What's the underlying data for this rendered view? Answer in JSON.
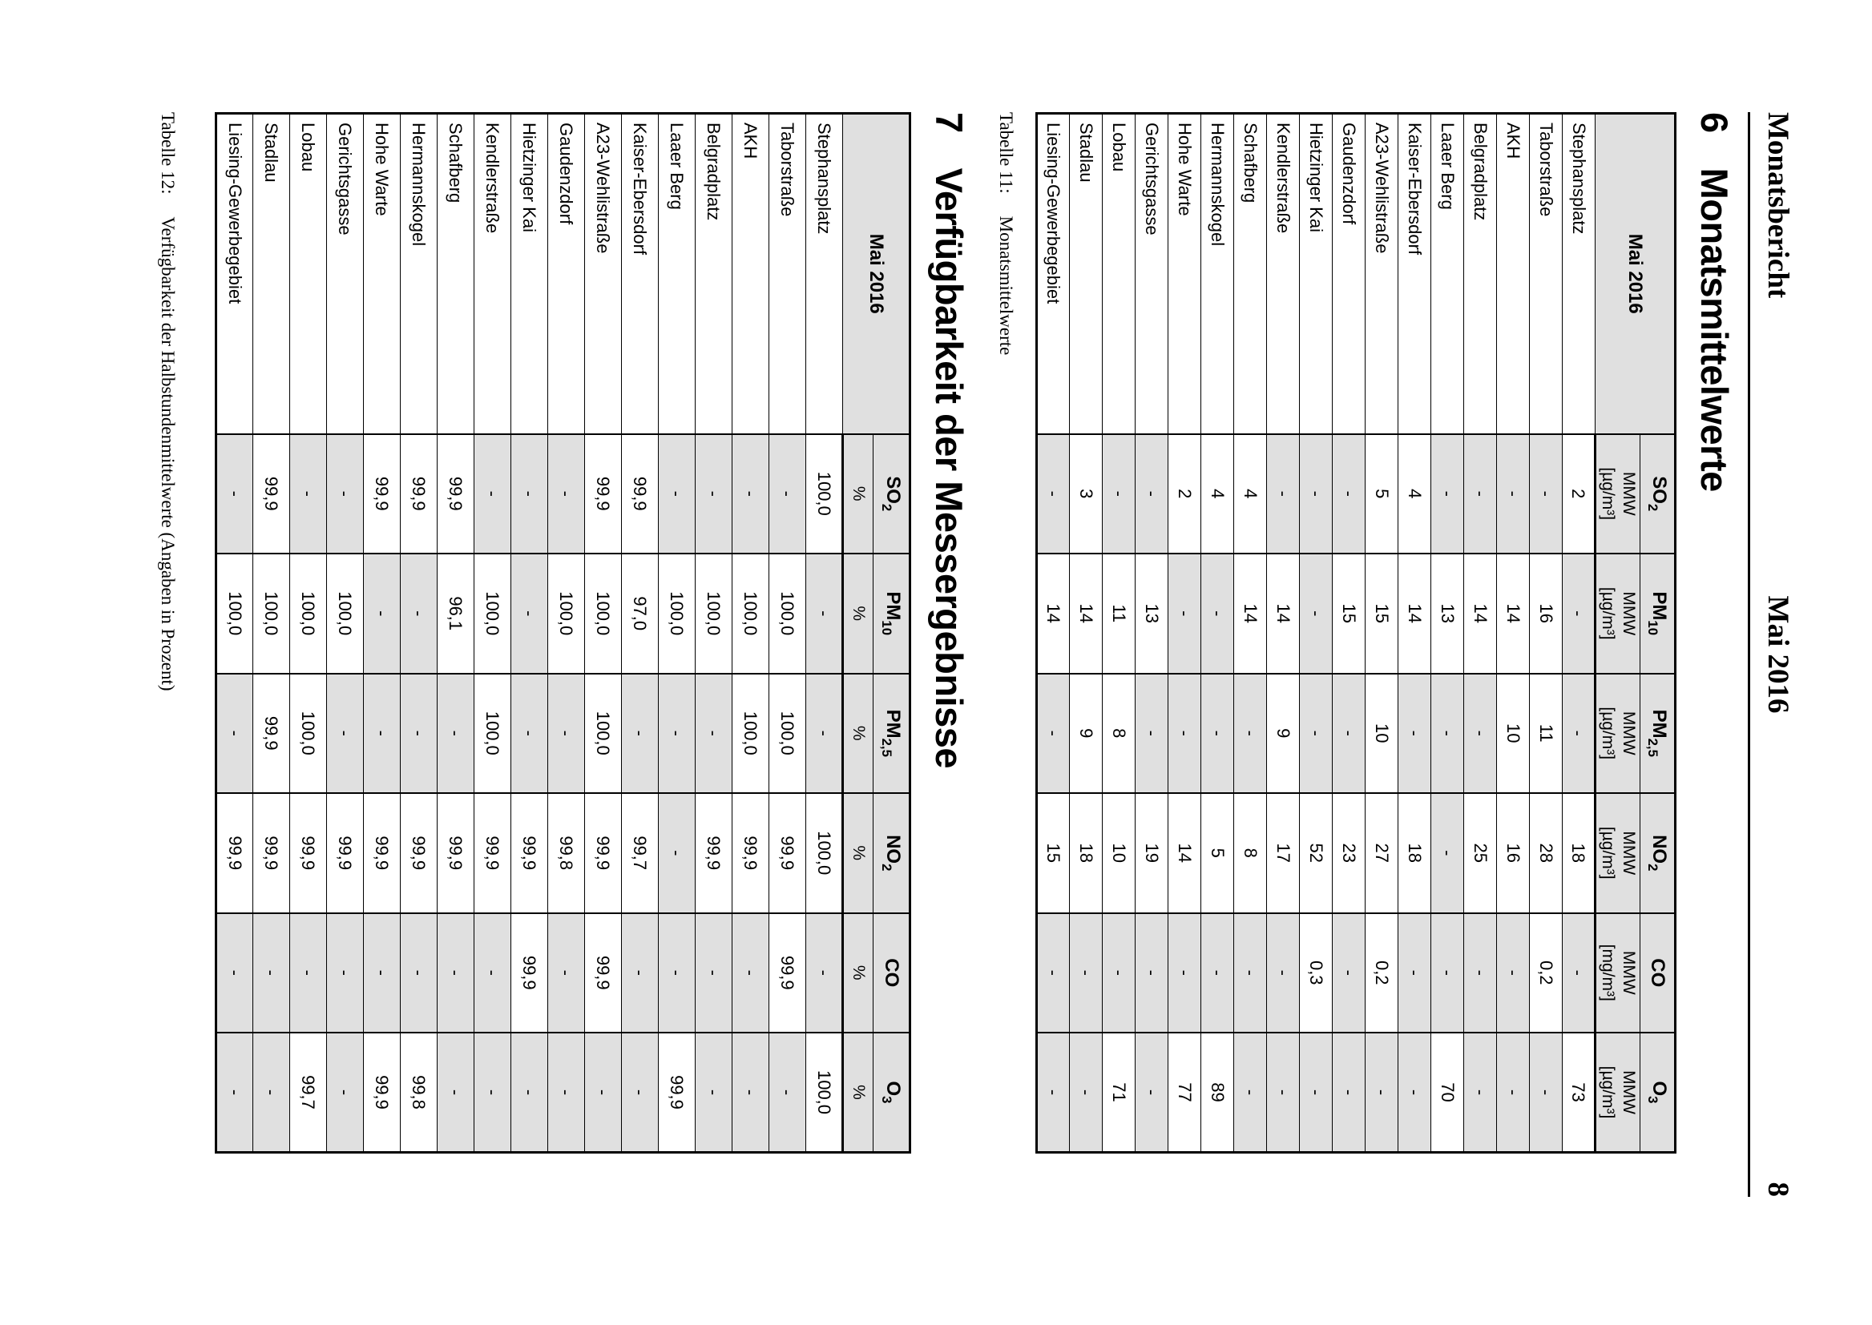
{
  "page": {
    "header": {
      "left": "Monatsbericht",
      "center": "Mai 2016",
      "page_number": "8"
    },
    "section6": {
      "number": "6",
      "title": "Monatsmittelwerte"
    },
    "section7": {
      "number": "7",
      "title": "Verfügbarkeit der Messergebnisse"
    },
    "table11_caption": {
      "label": "Tabelle 11:",
      "text": "Monatsmittelwerte"
    },
    "table12_caption": {
      "label": "Tabelle 12:",
      "text": "Verfügbarkeit der Halbstundenmittelwerte (Angaben in Prozent)"
    }
  },
  "colors": {
    "na_cell": "#e0e0e0",
    "header_bg": "#e0e0e0",
    "border": "#000000"
  },
  "tables": {
    "monatsmittelwerte": {
      "corner": "Mai 2016",
      "columns": [
        {
          "symbol": "SO|2",
          "unit": "MMW",
          "unit2": "[µg/m³]"
        },
        {
          "symbol": "PM|10",
          "unit": "MMW",
          "unit2": "[µg/m³]"
        },
        {
          "symbol": "PM|2,5",
          "unit": "MMW",
          "unit2": "[µg/m³]"
        },
        {
          "symbol": "NO|2",
          "unit": "MMW",
          "unit2": "[µg/m³]"
        },
        {
          "symbol": "CO",
          "unit": "MMW",
          "unit2": "[mg/m³]"
        },
        {
          "symbol": "O|3",
          "unit": "MMW",
          "unit2": "[µg/m³]"
        }
      ],
      "rows": [
        {
          "station": "Stephansplatz",
          "values": [
            "2",
            "-",
            "-",
            "18",
            "-",
            "73"
          ]
        },
        {
          "station": "Taborstraße",
          "values": [
            "-",
            "16",
            "11",
            "28",
            "0,2",
            "-"
          ]
        },
        {
          "station": "AKH",
          "values": [
            "-",
            "14",
            "10",
            "16",
            "-",
            "-"
          ]
        },
        {
          "station": "Belgradplatz",
          "values": [
            "-",
            "14",
            "-",
            "25",
            "-",
            "-"
          ]
        },
        {
          "station": "Laaer Berg",
          "values": [
            "-",
            "13",
            "-",
            "-",
            "-",
            "70"
          ]
        },
        {
          "station": "Kaiser-Ebersdorf",
          "values": [
            "4",
            "14",
            "-",
            "18",
            "-",
            "-"
          ]
        },
        {
          "station": "A23-Wehlistraße",
          "values": [
            "5",
            "15",
            "10",
            "27",
            "0,2",
            "-"
          ]
        },
        {
          "station": "Gaudenzdorf",
          "values": [
            "-",
            "15",
            "-",
            "23",
            "-",
            "-"
          ]
        },
        {
          "station": "Hietzinger Kai",
          "values": [
            "-",
            "-",
            "-",
            "52",
            "0,3",
            "-"
          ]
        },
        {
          "station": "Kendlerstraße",
          "values": [
            "-",
            "14",
            "9",
            "17",
            "-",
            "-"
          ]
        },
        {
          "station": "Schafberg",
          "values": [
            "4",
            "14",
            "-",
            "8",
            "-",
            "-"
          ]
        },
        {
          "station": "Hermannskogel",
          "values": [
            "4",
            "-",
            "-",
            "5",
            "-",
            "89"
          ]
        },
        {
          "station": "Hohe Warte",
          "values": [
            "2",
            "-",
            "-",
            "14",
            "-",
            "77"
          ]
        },
        {
          "station": "Gerichtsgasse",
          "values": [
            "-",
            "13",
            "-",
            "19",
            "-",
            "-"
          ]
        },
        {
          "station": "Lobau",
          "values": [
            "-",
            "11",
            "8",
            "10",
            "-",
            "71"
          ]
        },
        {
          "station": "Stadlau",
          "values": [
            "3",
            "14",
            "9",
            "18",
            "-",
            "-"
          ]
        },
        {
          "station": "Liesing-Gewerbegebiet",
          "values": [
            "-",
            "14",
            "-",
            "15",
            "-",
            "-"
          ]
        }
      ]
    },
    "verfuegbarkeit": {
      "corner": "Mai 2016",
      "columns": [
        {
          "symbol": "SO|2",
          "unit": "%"
        },
        {
          "symbol": "PM|10",
          "unit": "%"
        },
        {
          "symbol": "PM|2,5",
          "unit": "%"
        },
        {
          "symbol": "NO|2",
          "unit": "%"
        },
        {
          "symbol": "CO",
          "unit": "%"
        },
        {
          "symbol": "O|3",
          "unit": "%"
        }
      ],
      "rows": [
        {
          "station": "Stephansplatz",
          "values": [
            "100,0",
            "-",
            "-",
            "100,0",
            "-",
            "100,0"
          ]
        },
        {
          "station": "Taborstraße",
          "values": [
            "-",
            "100,0",
            "100,0",
            "99,9",
            "99,9",
            "-"
          ]
        },
        {
          "station": "AKH",
          "values": [
            "-",
            "100,0",
            "100,0",
            "99,9",
            "-",
            "-"
          ]
        },
        {
          "station": "Belgradplatz",
          "values": [
            "-",
            "100,0",
            "-",
            "99,9",
            "-",
            "-"
          ]
        },
        {
          "station": "Laaer Berg",
          "values": [
            "-",
            "100,0",
            "-",
            "-",
            "-",
            "99,9"
          ]
        },
        {
          "station": "Kaiser-Ebersdorf",
          "values": [
            "99,9",
            "97,0",
            "-",
            "99,7",
            "-",
            "-"
          ]
        },
        {
          "station": "A23-Wehlistraße",
          "values": [
            "99,9",
            "100,0",
            "100,0",
            "99,9",
            "99,9",
            "-"
          ]
        },
        {
          "station": "Gaudenzdorf",
          "values": [
            "-",
            "100,0",
            "-",
            "99,8",
            "-",
            "-"
          ]
        },
        {
          "station": "Hietzinger Kai",
          "values": [
            "-",
            "-",
            "-",
            "99,9",
            "99,9",
            "-"
          ]
        },
        {
          "station": "Kendlerstraße",
          "values": [
            "-",
            "100,0",
            "100,0",
            "99,9",
            "-",
            "-"
          ]
        },
        {
          "station": "Schafberg",
          "values": [
            "99,9",
            "96,1",
            "-",
            "99,9",
            "-",
            "-"
          ]
        },
        {
          "station": "Hermannskogel",
          "values": [
            "99,9",
            "-",
            "-",
            "99,9",
            "-",
            "99,8"
          ]
        },
        {
          "station": "Hohe Warte",
          "values": [
            "99,9",
            "-",
            "-",
            "99,9",
            "-",
            "99,9"
          ]
        },
        {
          "station": "Gerichtsgasse",
          "values": [
            "-",
            "100,0",
            "-",
            "99,9",
            "-",
            "-"
          ]
        },
        {
          "station": "Lobau",
          "values": [
            "-",
            "100,0",
            "100,0",
            "99,9",
            "-",
            "99,7"
          ]
        },
        {
          "station": "Stadlau",
          "values": [
            "99,9",
            "100,0",
            "99,9",
            "99,9",
            "-",
            "-"
          ]
        },
        {
          "station": "Liesing-Gewerbegebiet",
          "values": [
            "-",
            "100,0",
            "-",
            "99,9",
            "-",
            "-"
          ]
        }
      ]
    }
  }
}
